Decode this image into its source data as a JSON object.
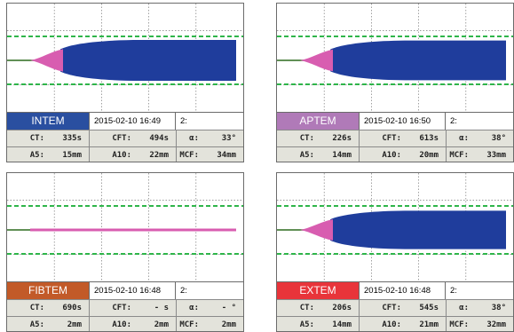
{
  "colors": {
    "grid": "#7a7a7a",
    "ref_line": "#2fb54a",
    "clot": "#1f3d9c",
    "early": "#d85db0",
    "baseline": "#2d6b1f"
  },
  "panels": [
    {
      "name": "INTEM",
      "badge_color": "#2a4fa0",
      "date": "2015-02-10 16:49",
      "channel": "2:",
      "metrics": [
        [
          {
            "label": "CT:",
            "value": "335s"
          },
          {
            "label": "CFT:",
            "value": "494s"
          },
          {
            "label": "α:",
            "value": "33°"
          }
        ],
        [
          {
            "label": "A5:",
            "value": "15mm"
          },
          {
            "label": "A10:",
            "value": "22mm"
          },
          {
            "label": "MCF:",
            "value": "34mm"
          }
        ]
      ],
      "trace": {
        "type": "full",
        "max_amp": 34
      }
    },
    {
      "name": "APTEM",
      "badge_color": "#b07ab8",
      "date": "2015-02-10 16:50",
      "channel": "2:",
      "metrics": [
        [
          {
            "label": "CT:",
            "value": "226s"
          },
          {
            "label": "CFT:",
            "value": "613s"
          },
          {
            "label": "α:",
            "value": "38°"
          }
        ],
        [
          {
            "label": "A5:",
            "value": "14mm"
          },
          {
            "label": "A10:",
            "value": "20mm"
          },
          {
            "label": "MCF:",
            "value": "33mm"
          }
        ]
      ],
      "trace": {
        "type": "full",
        "max_amp": 33
      }
    },
    {
      "name": "FIBTEM",
      "badge_color": "#c25a28",
      "date": "2015-02-10 16:48",
      "channel": "2:",
      "metrics": [
        [
          {
            "label": "CT:",
            "value": "690s"
          },
          {
            "label": "CFT:",
            "value": "- s"
          },
          {
            "label": "α:",
            "value": "- °"
          }
        ],
        [
          {
            "label": "A5:",
            "value": "2mm"
          },
          {
            "label": "A10:",
            "value": "2mm"
          },
          {
            "label": "MCF:",
            "value": "2mm"
          }
        ]
      ],
      "trace": {
        "type": "thin",
        "max_amp": 2
      }
    },
    {
      "name": "EXTEM",
      "badge_color": "#e8343a",
      "date": "2015-02-10 16:48",
      "channel": "2:",
      "metrics": [
        [
          {
            "label": "CT:",
            "value": "206s"
          },
          {
            "label": "CFT:",
            "value": "545s"
          },
          {
            "label": "α:",
            "value": "38°"
          }
        ],
        [
          {
            "label": "A5:",
            "value": "14mm"
          },
          {
            "label": "A10:",
            "value": "21mm"
          },
          {
            "label": "MCF:",
            "value": "32mm"
          }
        ]
      ],
      "trace": {
        "type": "full",
        "max_amp": 32
      }
    }
  ]
}
